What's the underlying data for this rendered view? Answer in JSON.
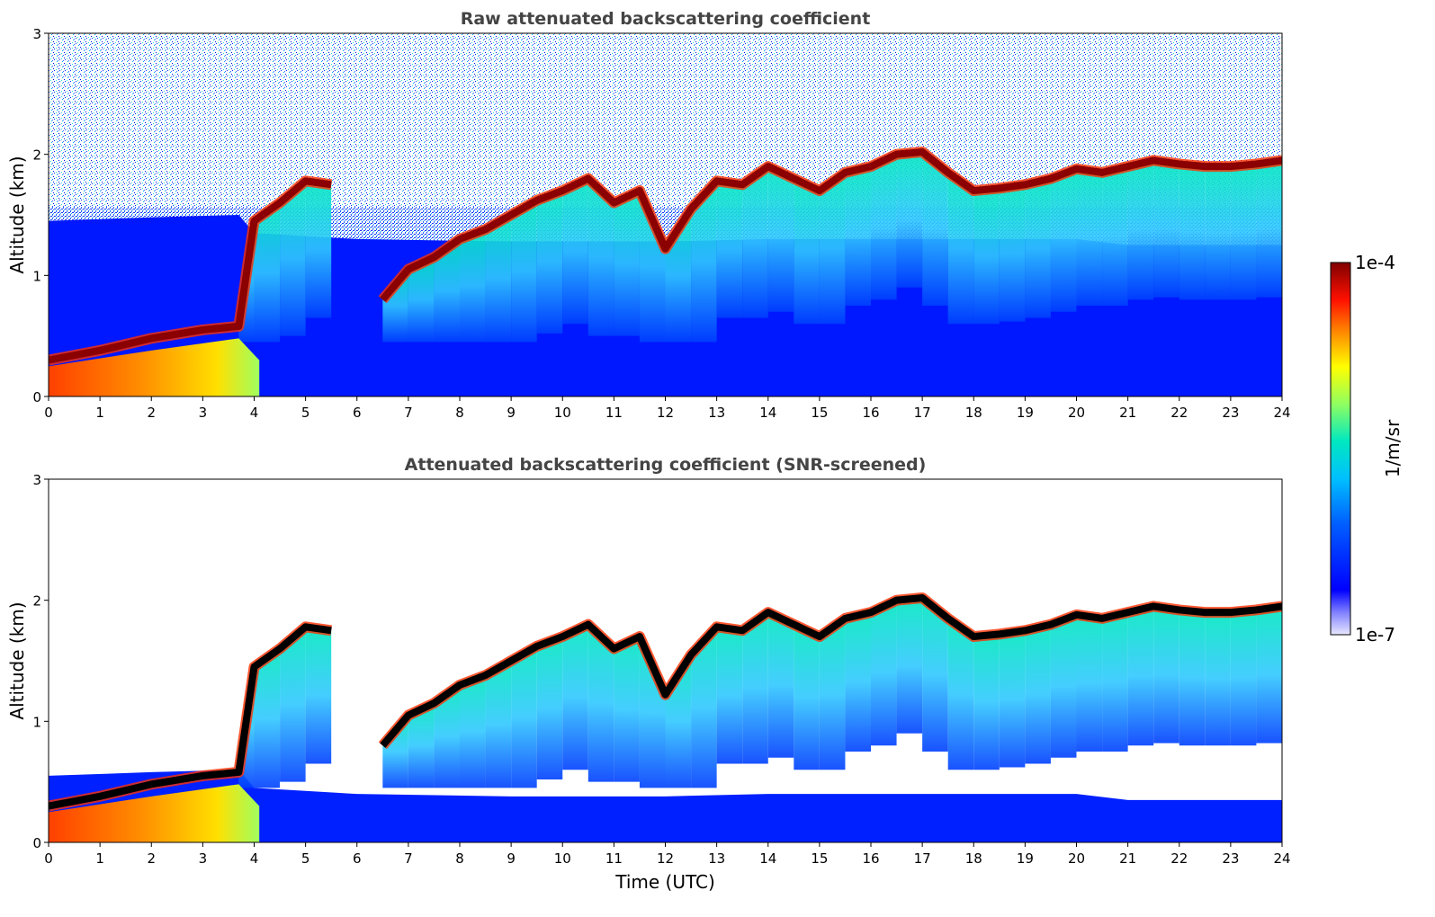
{
  "chart_data": [
    {
      "type": "heatmap",
      "title": "Raw attenuated backscattering coefficient",
      "xlabel": "",
      "ylabel": "Altitude (km)",
      "xlim": [
        0,
        24
      ],
      "ylim": [
        0,
        3
      ],
      "xticks": [
        0,
        1,
        2,
        3,
        4,
        5,
        6,
        7,
        8,
        9,
        10,
        11,
        12,
        13,
        14,
        15,
        16,
        17,
        18,
        19,
        20,
        21,
        22,
        23,
        24
      ],
      "yticks": [
        0,
        1,
        2,
        3
      ],
      "screened": false,
      "features": {
        "cloud_top_height_km": {
          "x": [
            0,
            1,
            2,
            3,
            3.7,
            4,
            4.5,
            5,
            5.5,
            6,
            6.5,
            7,
            7.5,
            8,
            8.5,
            9,
            9.5,
            10,
            10.5,
            11,
            11.5,
            12,
            12.5,
            13,
            13.5,
            14,
            14.5,
            15,
            15.5,
            16,
            16.5,
            17,
            17.5,
            18,
            18.5,
            19,
            19.5,
            20,
            20.5,
            21,
            21.5,
            22,
            22.5,
            23,
            23.5,
            24
          ],
          "y": [
            0.3,
            0.38,
            0.48,
            0.55,
            0.58,
            1.45,
            1.6,
            1.78,
            1.75,
            null,
            0.8,
            1.05,
            1.15,
            1.3,
            1.38,
            1.5,
            1.62,
            1.7,
            1.8,
            1.6,
            1.7,
            1.22,
            1.55,
            1.78,
            1.75,
            1.9,
            1.8,
            1.7,
            1.85,
            1.9,
            2.0,
            2.02,
            1.85,
            1.7,
            1.72,
            1.75,
            1.8,
            1.88,
            1.85,
            1.9,
            1.95,
            1.92,
            1.9,
            1.9,
            1.92,
            1.95
          ]
        },
        "boundary_layer_top_km": {
          "x": [
            0,
            2,
            3.7,
            4,
            6,
            9,
            12,
            14,
            16,
            18,
            20,
            21,
            22,
            24
          ],
          "y": [
            0.55,
            0.58,
            0.6,
            0.45,
            0.4,
            0.38,
            0.38,
            0.4,
            0.4,
            0.4,
            0.4,
            0.35,
            0.35,
            0.35
          ]
        }
      }
    },
    {
      "type": "heatmap",
      "title": "Attenuated backscattering coefficient (SNR-screened)",
      "xlabel": "Time (UTC)",
      "ylabel": "Altitude (km)",
      "xlim": [
        0,
        24
      ],
      "ylim": [
        0,
        3
      ],
      "xticks": [
        0,
        1,
        2,
        3,
        4,
        5,
        6,
        7,
        8,
        9,
        10,
        11,
        12,
        13,
        14,
        15,
        16,
        17,
        18,
        19,
        20,
        21,
        22,
        23,
        24
      ],
      "yticks": [
        0,
        1,
        2,
        3
      ],
      "screened": true,
      "features": {
        "cloud_top_height_km": {
          "x": [
            0,
            1,
            2,
            3,
            3.7,
            4,
            4.5,
            5,
            5.5,
            6,
            6.5,
            7,
            7.5,
            8,
            8.5,
            9,
            9.5,
            10,
            10.5,
            11,
            11.5,
            12,
            12.5,
            13,
            13.5,
            14,
            14.5,
            15,
            15.5,
            16,
            16.5,
            17,
            17.5,
            18,
            18.5,
            19,
            19.5,
            20,
            20.5,
            21,
            21.5,
            22,
            22.5,
            23,
            23.5,
            24
          ],
          "y": [
            0.3,
            0.38,
            0.48,
            0.55,
            0.58,
            1.45,
            1.6,
            1.78,
            1.75,
            null,
            0.8,
            1.05,
            1.15,
            1.3,
            1.38,
            1.5,
            1.62,
            1.7,
            1.8,
            1.6,
            1.7,
            1.22,
            1.55,
            1.78,
            1.75,
            1.9,
            1.8,
            1.7,
            1.85,
            1.9,
            2.0,
            2.02,
            1.85,
            1.7,
            1.72,
            1.75,
            1.8,
            1.88,
            1.85,
            1.9,
            1.95,
            1.92,
            1.9,
            1.9,
            1.92,
            1.95
          ]
        }
      }
    }
  ],
  "colorbar": {
    "max_label": "1e-4",
    "min_label": "1e-7",
    "unit_label": "1/m/sr",
    "scale": "log",
    "range": [
      1e-07,
      0.0001
    ],
    "colors": [
      "#e8e8ff",
      "#0000ff",
      "#0090ff",
      "#00e0e0",
      "#a0ff60",
      "#ffff00",
      "#ff8000",
      "#ff0000",
      "#800000"
    ]
  },
  "colors": {
    "title": "#444444",
    "cloud_core": "#8b0000",
    "screened_core": "#000000",
    "background_noise": "#0000ff"
  }
}
